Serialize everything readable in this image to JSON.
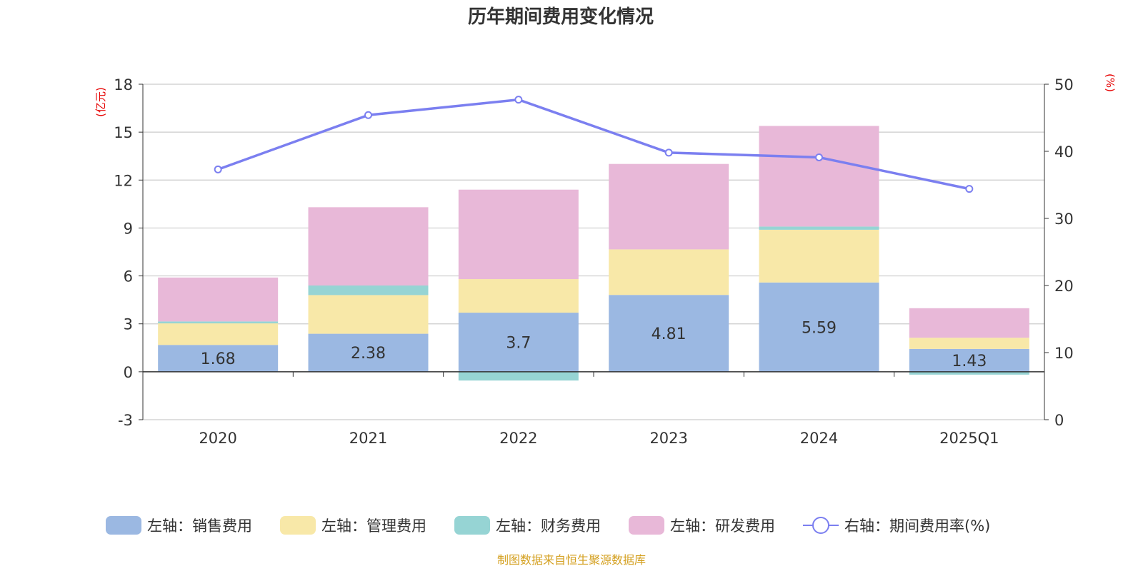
{
  "chart_data": {
    "type": "bar",
    "title": "历年期间费用变化情况",
    "left_unit": "(亿元)",
    "right_unit": "(%)",
    "categories": [
      "2020",
      "2021",
      "2022",
      "2023",
      "2024",
      "2025Q1"
    ],
    "left_axis": {
      "min": -3,
      "max": 18,
      "ticks": [
        "-3",
        "0",
        "3",
        "6",
        "9",
        "12",
        "15",
        "18"
      ]
    },
    "right_axis": {
      "min": 0,
      "max": 50,
      "ticks": [
        "0",
        "10",
        "20",
        "30",
        "40",
        "50"
      ]
    },
    "series": [
      {
        "name": "左轴：销售费用",
        "kind": "bar",
        "axis": "left",
        "color": "#9bb8e2",
        "values": [
          1.68,
          2.38,
          3.7,
          4.81,
          5.59,
          1.43
        ],
        "labels": [
          "1.68",
          "2.38",
          "3.7",
          "4.81",
          "5.59",
          "1.43"
        ]
      },
      {
        "name": "左轴：管理费用",
        "kind": "bar",
        "axis": "left",
        "color": "#f8e8a8",
        "values": [
          1.35,
          2.42,
          2.1,
          2.85,
          3.3,
          0.7
        ]
      },
      {
        "name": "左轴：财务费用",
        "kind": "bar",
        "axis": "left",
        "color": "#96d4d4",
        "values": [
          0.12,
          0.6,
          -0.55,
          0.0,
          0.2,
          -0.18
        ]
      },
      {
        "name": "左轴：研发费用",
        "kind": "bar",
        "axis": "left",
        "color": "#e8b8d8",
        "values": [
          2.75,
          4.9,
          5.6,
          5.35,
          6.3,
          1.85
        ]
      },
      {
        "name": "右轴：期间费用率(%)",
        "kind": "line",
        "axis": "right",
        "color": "#7b7ff0",
        "values": [
          37.3,
          45.4,
          47.7,
          39.8,
          39.1,
          34.4
        ]
      }
    ],
    "source": "制图数据来自恒生聚源数据库"
  }
}
